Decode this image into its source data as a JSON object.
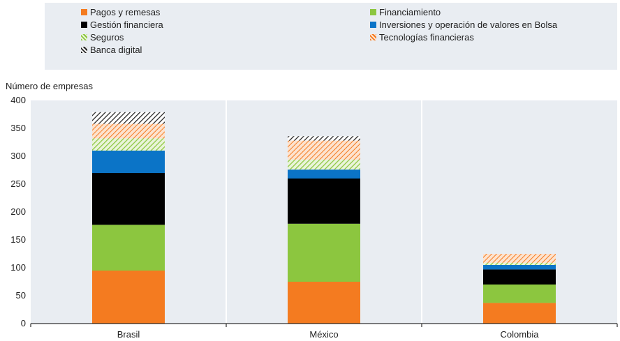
{
  "chart_data": {
    "type": "bar",
    "stacked": true,
    "ylabel": "Número de empresas",
    "ylim": [
      0,
      400
    ],
    "yticks": [
      0,
      50,
      100,
      150,
      200,
      250,
      300,
      350,
      400
    ],
    "categories": [
      "Brasil",
      "México",
      "Colombia"
    ],
    "series": [
      {
        "name": "Pagos y remesas",
        "color": "#f47b20",
        "pattern": "solid",
        "values": [
          95,
          75,
          37
        ]
      },
      {
        "name": "Financiamiento",
        "color": "#8cc63f",
        "pattern": "solid",
        "values": [
          82,
          104,
          33
        ]
      },
      {
        "name": "Gestión financiera",
        "color": "#000000",
        "pattern": "solid",
        "values": [
          93,
          81,
          27
        ]
      },
      {
        "name": "Inversiones y operación de valores en Bolsa",
        "color": "#0b74c7",
        "pattern": "solid",
        "values": [
          40,
          16,
          8
        ]
      },
      {
        "name": "Seguros",
        "color": "#c5e39a",
        "pattern": "hatch",
        "values": [
          22,
          18,
          4
        ]
      },
      {
        "name": "Tecnologías financieras",
        "color": "#f7b98d",
        "pattern": "hatch",
        "values": [
          26,
          34,
          16
        ]
      },
      {
        "name": "Banca digital",
        "color": "#444444",
        "pattern": "hatch",
        "values": [
          21,
          8,
          0
        ]
      }
    ],
    "legend_position": "top",
    "grid": "vertical"
  }
}
